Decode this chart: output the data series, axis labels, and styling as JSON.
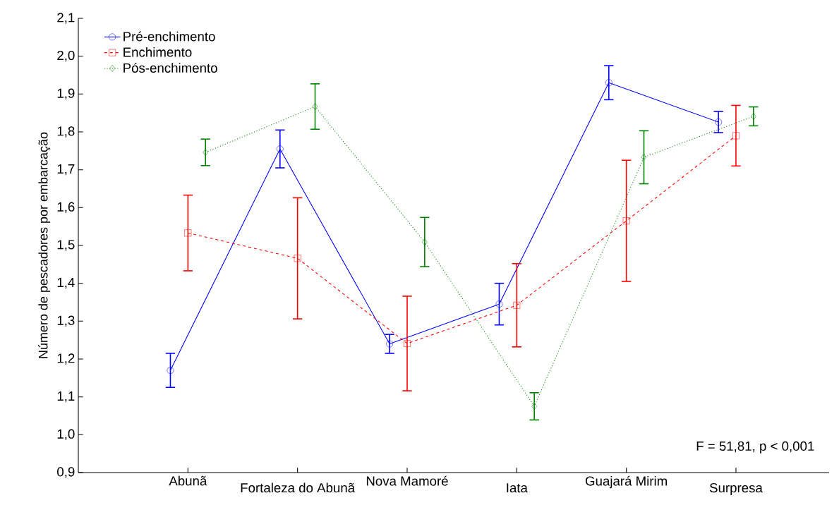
{
  "chart_data": {
    "type": "line",
    "ylabel": "Número de pescadores por embarcação",
    "categories": [
      "Abunã",
      "Fortaleza do Abunã",
      "Nova Mamoré",
      "Iata",
      "Guajará Mirim",
      "Surpresa"
    ],
    "series": [
      {
        "name": "Pré-enchimento",
        "color": "#0000ff",
        "marker": "circle",
        "line_style": "solid",
        "values": [
          1.17,
          1.755,
          1.24,
          1.345,
          1.93,
          1.826
        ],
        "errors": [
          0.045,
          0.05,
          0.025,
          0.055,
          0.045,
          0.028
        ]
      },
      {
        "name": "Enchimento",
        "color": "#ff0000",
        "marker": "square",
        "line_style": "dashed",
        "values": [
          1.533,
          1.466,
          1.241,
          1.342,
          1.565,
          1.79
        ],
        "errors": [
          0.1,
          0.16,
          0.125,
          0.11,
          0.16,
          0.08
        ]
      },
      {
        "name": "Pós-enchimento",
        "color": "#008000",
        "marker": "diamond",
        "line_style": "dotted",
        "values": [
          1.746,
          1.867,
          1.509,
          1.075,
          1.733,
          1.841
        ],
        "errors": [
          0.035,
          0.06,
          0.065,
          0.036,
          0.07,
          0.025
        ]
      }
    ],
    "ylim": [
      0.9,
      2.1
    ],
    "yticks": [
      {
        "value": 0.9,
        "label": "0,9"
      },
      {
        "value": 1.0,
        "label": "1,0"
      },
      {
        "value": 1.1,
        "label": "1,1"
      },
      {
        "value": 1.2,
        "label": "1,2"
      },
      {
        "value": 1.3,
        "label": "1,3"
      },
      {
        "value": 1.4,
        "label": "1,4"
      },
      {
        "value": 1.5,
        "label": "1,5"
      },
      {
        "value": 1.6,
        "label": "1,6"
      },
      {
        "value": 1.7,
        "label": "1,7"
      },
      {
        "value": 1.8,
        "label": "1,8"
      },
      {
        "value": 1.9,
        "label": "1,9"
      },
      {
        "value": 2.0,
        "label": "2,0"
      },
      {
        "value": 2.1,
        "label": "2,1"
      }
    ],
    "legend": "top left",
    "grid": false,
    "annotations": [
      "F = 51,81, p < 0,001"
    ]
  }
}
